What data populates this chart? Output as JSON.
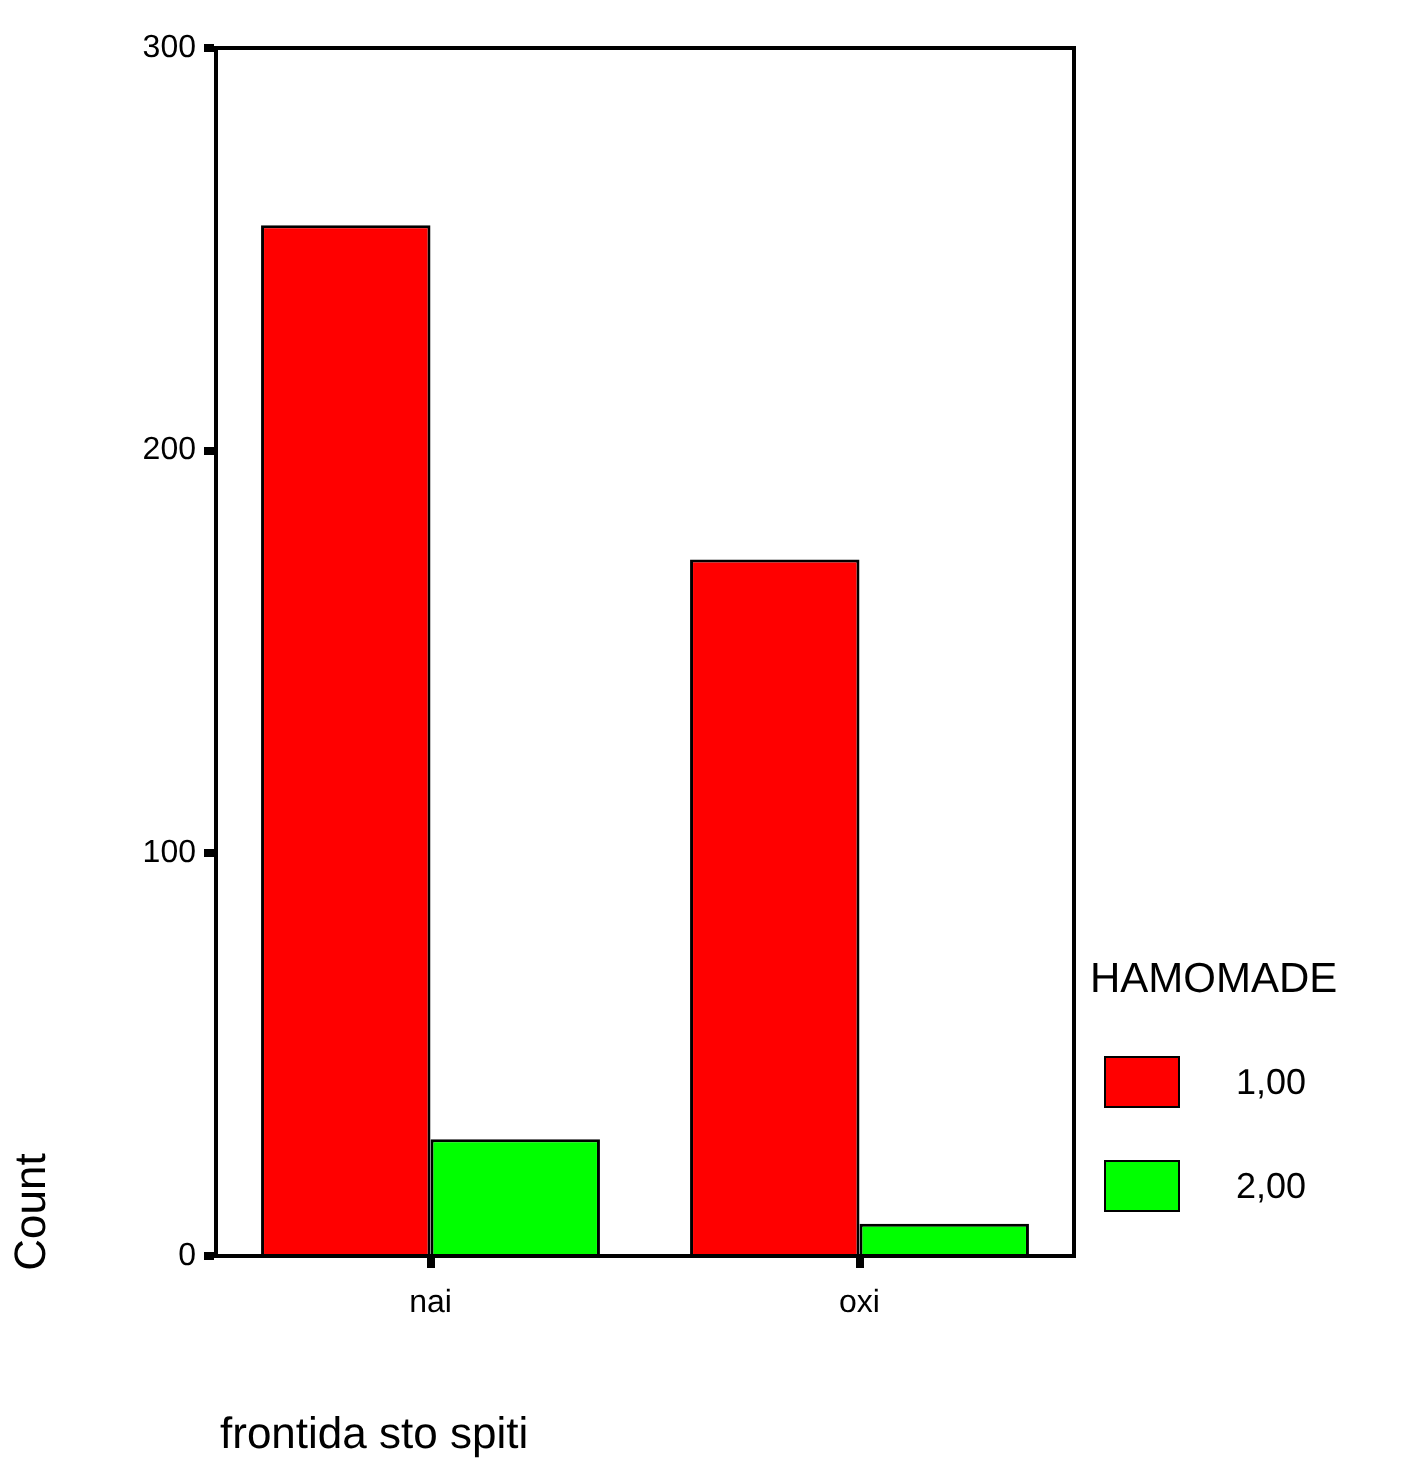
{
  "chart_data": {
    "type": "bar",
    "xlabel": "frontida sto spiti",
    "ylabel": "Count",
    "legend_title": "HAMOMADE",
    "legend": "right",
    "grid": false,
    "categories": [
      "nai",
      "oxi"
    ],
    "series": [
      {
        "name": "1,00",
        "color": "#ff0000",
        "values": [
          256,
          173
        ]
      },
      {
        "name": "2,00",
        "color": "#00ff00",
        "values": [
          29,
          8
        ]
      }
    ],
    "ylim": [
      0,
      300
    ],
    "yticks": [
      0,
      100,
      200,
      300
    ]
  }
}
